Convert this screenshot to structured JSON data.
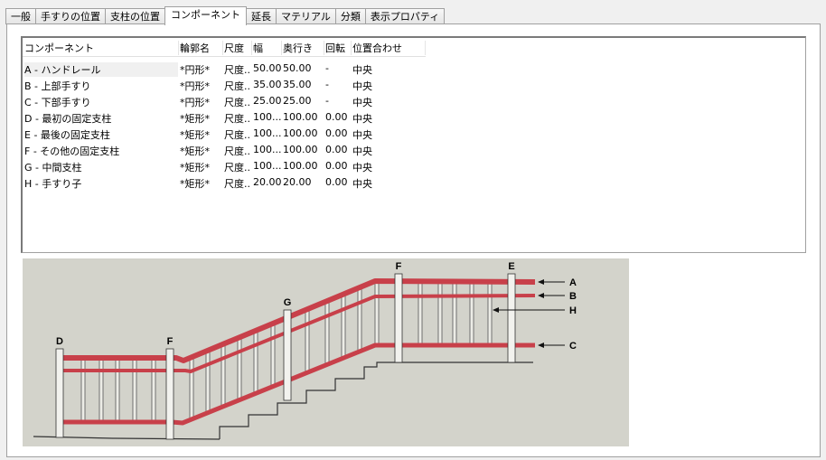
{
  "tabs": [
    {
      "label": "一般",
      "active": false
    },
    {
      "label": "手すりの位置",
      "active": false
    },
    {
      "label": "支柱の位置",
      "active": false
    },
    {
      "label": "コンポーネント",
      "active": true
    },
    {
      "label": "延長",
      "active": false
    },
    {
      "label": "マテリアル",
      "active": false
    },
    {
      "label": "分類",
      "active": false
    },
    {
      "label": "表示プロパティ",
      "active": false
    }
  ],
  "table": {
    "columns": [
      "コンポーネント",
      "輪郭名",
      "尺度",
      "幅",
      "奥行き",
      "回転",
      "位置合わせ"
    ],
    "rows": [
      [
        "A - ハンドレール",
        "*円形*",
        "尺度...",
        "50.00",
        "50.00",
        "-",
        "中央"
      ],
      [
        "B - 上部手すり",
        "*円形*",
        "尺度...",
        "35.00",
        "35.00",
        "-",
        "中央"
      ],
      [
        "C - 下部手すり",
        "*円形*",
        "尺度...",
        "25.00",
        "25.00",
        "-",
        "中央"
      ],
      [
        "D - 最初の固定支柱",
        "*矩形*",
        "尺度...",
        "100....",
        "100.00",
        "0.00",
        "中央"
      ],
      [
        "E - 最後の固定支柱",
        "*矩形*",
        "尺度...",
        "100....",
        "100.00",
        "0.00",
        "中央"
      ],
      [
        "F - その他の固定支柱",
        "*矩形*",
        "尺度...",
        "100....",
        "100.00",
        "0.00",
        "中央"
      ],
      [
        "G - 中間支柱",
        "*矩形*",
        "尺度...",
        "100....",
        "100.00",
        "0.00",
        "中央"
      ],
      [
        "H - 手すり子",
        "*矩形*",
        "尺度...",
        "20.00",
        "20.00",
        "0.00",
        "中央"
      ]
    ]
  },
  "diagram": {
    "post_labels": [
      "D",
      "F",
      "G",
      "F",
      "E"
    ],
    "callouts": [
      "A",
      "B",
      "H",
      "C"
    ],
    "rail_color": "#c8404a",
    "background": "#d3d3cb"
  }
}
